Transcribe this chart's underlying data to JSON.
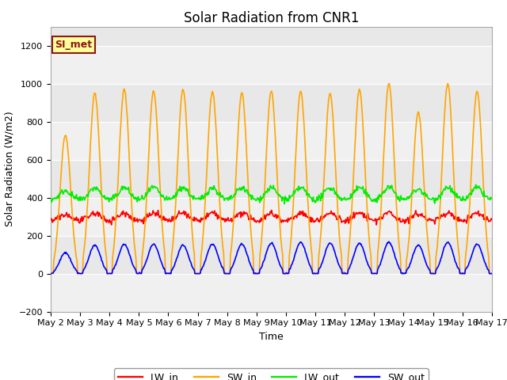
{
  "title": "Solar Radiation from CNR1",
  "xlabel": "Time",
  "ylabel": "Solar Radiation (W/m2)",
  "ylim": [
    -200,
    1300
  ],
  "yticks": [
    -200,
    0,
    200,
    400,
    600,
    800,
    1000,
    1200
  ],
  "background_color": "#ffffff",
  "plot_bg_color": "#e8e8e8",
  "plot_bg_stripe_light": "#f0f0f0",
  "legend_label": "SI_met",
  "legend_bg": "#ffff99",
  "legend_border": "#8b1a1a",
  "colors": {
    "LW_in": "#ff0000",
    "SW_in": "#ffa500",
    "LW_out": "#00ee00",
    "SW_out": "#0000ff"
  },
  "line_width": 1.2,
  "title_fontsize": 12,
  "axis_fontsize": 9,
  "tick_fontsize": 8,
  "SW_in_peaks": [
    730,
    950,
    970,
    960,
    970,
    960,
    950,
    960,
    960,
    950,
    970,
    1000,
    850,
    1000,
    960
  ],
  "SW_out_peaks": [
    110,
    150,
    155,
    155,
    150,
    155,
    155,
    160,
    165,
    160,
    160,
    165,
    150,
    165,
    155
  ],
  "LW_in_base": 280,
  "LW_out_base": 390
}
